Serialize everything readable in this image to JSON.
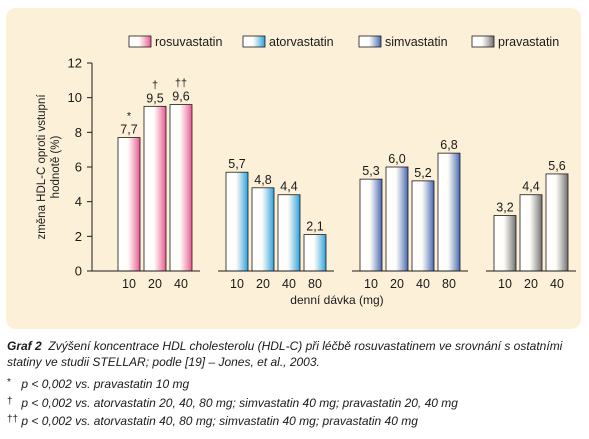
{
  "chart_data": {
    "type": "bar",
    "ylabel": "změna HDL-C oproti vstupní hodnotě (%)",
    "xlabel": "denní dávka (mg)",
    "ylim": [
      0,
      12
    ],
    "yticks": [
      "0",
      "2",
      "4",
      "6",
      "8",
      "10",
      "12"
    ],
    "legend_position": "top",
    "series": [
      {
        "name": "rosuvastatin",
        "color": "#e8578f",
        "doses": [
          "10",
          "20",
          "40"
        ],
        "values": [
          7.7,
          9.5,
          9.6
        ],
        "labels": [
          "7,7",
          "9,5",
          "9,6"
        ],
        "markers": [
          "*",
          "†",
          "††"
        ]
      },
      {
        "name": "atorvastatin",
        "color": "#2a9fdc",
        "doses": [
          "10",
          "20",
          "40",
          "80"
        ],
        "values": [
          5.7,
          4.8,
          4.4,
          2.1
        ],
        "labels": [
          "5,7",
          "4,8",
          "4,4",
          "2,1"
        ],
        "markers": [
          "",
          "",
          "",
          ""
        ]
      },
      {
        "name": "simvastatin",
        "color": "#4466b0",
        "doses": [
          "10",
          "20",
          "40",
          "80"
        ],
        "values": [
          5.3,
          6.0,
          5.2,
          6.8
        ],
        "labels": [
          "5,3",
          "6,0",
          "5,2",
          "6,8"
        ],
        "markers": [
          "",
          "",
          "",
          ""
        ]
      },
      {
        "name": "pravastatin",
        "color": "#6e6e6e",
        "doses": [
          "10",
          "20",
          "40"
        ],
        "values": [
          3.2,
          4.4,
          5.6
        ],
        "labels": [
          "3,2",
          "4,4",
          "5,6"
        ],
        "markers": [
          "",
          "",
          ""
        ]
      }
    ]
  },
  "caption": {
    "label": "Graf 2",
    "text": "Zvýšení koncentrace HDL cholesterolu (HDL-C) při léčbě rosuvastatinem ve srovnání s ostatními statiny ve studii STELLAR; podle [19] – Jones, et al., 2003."
  },
  "footnotes": [
    {
      "symbol": "*",
      "p": "p",
      "text": "< 0,002 vs. pravastatin 10 mg"
    },
    {
      "symbol": "†",
      "p": "p",
      "text": "< 0,002 vs. atorvastatin 20, 40, 80 mg; simvastatin 40 mg; pravastatin 20, 40 mg"
    },
    {
      "symbol": "††",
      "p": "p",
      "text": "< 0,002 vs. atorvastatin 40, 80 mg; simvastatin 40 mg; pravastatin 40 mg"
    }
  ]
}
